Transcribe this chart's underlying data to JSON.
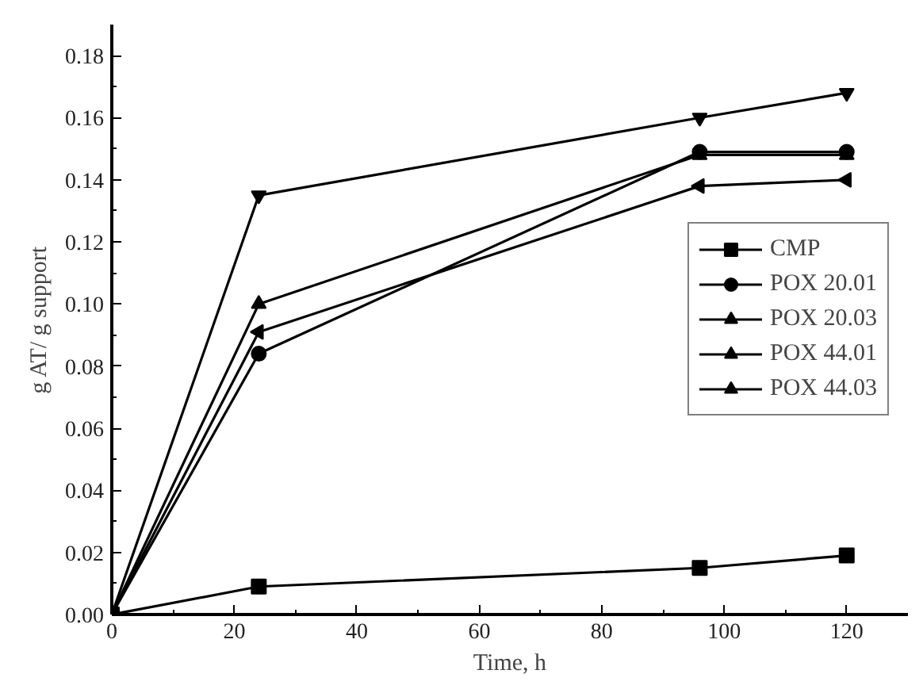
{
  "chart_data": {
    "type": "line",
    "xlabel": "Time, h",
    "ylabel": "g AT/ g support",
    "x": [
      0,
      24,
      96,
      120
    ],
    "series": [
      {
        "name": "CMP",
        "color": "#000000",
        "marker": "square",
        "values": [
          0,
          0.009,
          0.015,
          0.019
        ]
      },
      {
        "name": "POX 20.01",
        "color": "#000000",
        "marker": "circle",
        "values": [
          0,
          0.084,
          0.149,
          0.149
        ]
      },
      {
        "name": "POX 20.03",
        "color": "#000000",
        "marker": "triangle",
        "values": [
          0,
          0.1,
          0.148,
          0.148
        ]
      },
      {
        "name": "POX 44.01",
        "color": "#000000",
        "marker": "triangle",
        "values": [
          0,
          0.135,
          0.16,
          0.168
        ]
      },
      {
        "name": "POX 44.03",
        "color": "#000000",
        "marker": "triangle",
        "values": [
          0,
          0.091,
          0.138,
          0.14
        ]
      }
    ],
    "xlim": [
      0,
      130
    ],
    "ylim": [
      0,
      0.19
    ],
    "xticks": [
      0,
      20,
      40,
      60,
      80,
      100,
      120
    ],
    "yticks": [
      {
        "value": 0,
        "label": "0.00"
      },
      {
        "value": 0.02,
        "label": "0.02"
      },
      {
        "value": 0.04,
        "label": "0.04"
      },
      {
        "value": 0.06,
        "label": "0.06"
      },
      {
        "value": 0.08,
        "label": "0.08"
      },
      {
        "value": 0.1,
        "label": "0.10"
      },
      {
        "value": 0.12,
        "label": "0.12"
      },
      {
        "value": 0.14,
        "label": "0.14"
      },
      {
        "value": 0.16,
        "label": "0.16"
      },
      {
        "value": 0.18,
        "label": "0.18"
      }
    ],
    "grid": false,
    "legend": "right",
    "line_style": "solid"
  }
}
